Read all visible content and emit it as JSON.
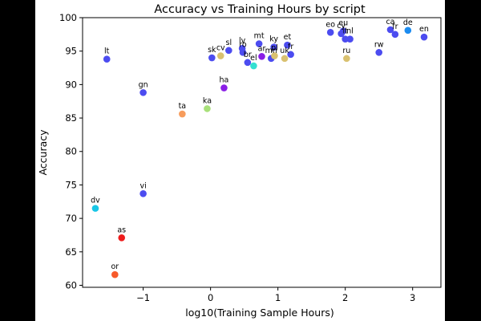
{
  "chart_data": {
    "type": "scatter",
    "title": "Accuracy vs Training Hours by script",
    "xlabel": "log10(Training Sample Hours)",
    "ylabel": "Accuracy",
    "xlim": [
      -1.9,
      3.42
    ],
    "ylim": [
      59.7,
      100
    ],
    "xticks": [
      -1,
      0,
      1,
      2,
      3
    ],
    "xtick_labels": [
      "−1",
      "0",
      "1",
      "2",
      "3"
    ],
    "yticks": [
      60,
      65,
      70,
      75,
      80,
      85,
      90,
      95,
      100
    ],
    "ytick_labels": [
      "60",
      "65",
      "70",
      "75",
      "80",
      "85",
      "90",
      "95",
      "100"
    ],
    "grid": false,
    "points": [
      {
        "label": "lt",
        "x": -1.54,
        "y": 93.8,
        "color": "#4c4cf0"
      },
      {
        "label": "gn",
        "x": -1.0,
        "y": 88.8,
        "color": "#4c4cf0"
      },
      {
        "label": "ta",
        "x": -0.42,
        "y": 85.6,
        "color": "#f79c5c"
      },
      {
        "label": "ka",
        "x": -0.05,
        "y": 86.4,
        "color": "#a8e07a"
      },
      {
        "label": "ha",
        "x": 0.2,
        "y": 89.5,
        "color": "#8a1ee6"
      },
      {
        "label": "sk",
        "x": 0.02,
        "y": 94.0,
        "color": "#4c4cf0"
      },
      {
        "label": "cv",
        "x": 0.15,
        "y": 94.3,
        "color": "#d9c170"
      },
      {
        "label": "sl",
        "x": 0.27,
        "y": 95.1,
        "color": "#4c4cf0"
      },
      {
        "label": "lv",
        "x": 0.47,
        "y": 95.4,
        "color": "#4c4cf0"
      },
      {
        "label": "ro",
        "x": 0.48,
        "y": 94.8,
        "color": "#4c4cf0"
      },
      {
        "label": "br",
        "x": 0.55,
        "y": 93.3,
        "color": "#4c4cf0"
      },
      {
        "label": "el",
        "x": 0.64,
        "y": 92.8,
        "color": "#33e0d1"
      },
      {
        "label": "mt",
        "x": 0.72,
        "y": 96.1,
        "color": "#4c4cf0"
      },
      {
        "label": "ar",
        "x": 0.76,
        "y": 94.2,
        "color": "#8a1ee6"
      },
      {
        "label": "ky",
        "x": 0.94,
        "y": 95.6,
        "color": "#4c4cf0"
      },
      {
        "label": "mn",
        "x": 0.9,
        "y": 93.9,
        "color": "#4c4cf0"
      },
      {
        "label": "pl",
        "x": 0.95,
        "y": 94.3,
        "color": "#d9c170"
      },
      {
        "label": "et",
        "x": 1.14,
        "y": 95.9,
        "color": "#4c4cf0"
      },
      {
        "label": "uk",
        "x": 1.1,
        "y": 93.9,
        "color": "#d9c170"
      },
      {
        "label": "fr",
        "x": 1.19,
        "y": 94.5,
        "color": "#4c4cf0"
      },
      {
        "label": "eo",
        "x": 1.78,
        "y": 97.8,
        "color": "#4c4cf0"
      },
      {
        "label": "cy",
        "x": 1.94,
        "y": 97.6,
        "color": "#4c4cf0"
      },
      {
        "label": "eu",
        "x": 1.97,
        "y": 98.0,
        "color": "#4c4cf0"
      },
      {
        "label": "it",
        "x": 2.0,
        "y": 96.8,
        "color": "#4c4cf0"
      },
      {
        "label": "nl",
        "x": 2.07,
        "y": 96.8,
        "color": "#4c4cf0"
      },
      {
        "label": "ru",
        "x": 2.02,
        "y": 93.9,
        "color": "#d9c170"
      },
      {
        "label": "rw",
        "x": 2.5,
        "y": 94.8,
        "color": "#4c4cf0"
      },
      {
        "label": "ca",
        "x": 2.67,
        "y": 98.2,
        "color": "#4c4cf0"
      },
      {
        "label": "fr",
        "x": 2.74,
        "y": 97.5,
        "color": "#4c4cf0"
      },
      {
        "label": "de",
        "x": 2.93,
        "y": 98.1,
        "color": "#1c8cf0"
      },
      {
        "label": "en",
        "x": 3.17,
        "y": 97.1,
        "color": "#4c4cf0"
      },
      {
        "label": "dv",
        "x": -1.71,
        "y": 71.5,
        "color": "#18c6e6"
      },
      {
        "label": "vi",
        "x": -1.0,
        "y": 73.7,
        "color": "#4c4cf0"
      },
      {
        "label": "as",
        "x": -1.32,
        "y": 67.1,
        "color": "#ee1c1c"
      },
      {
        "label": "or",
        "x": -1.42,
        "y": 61.6,
        "color": "#f75a2a"
      }
    ]
  }
}
